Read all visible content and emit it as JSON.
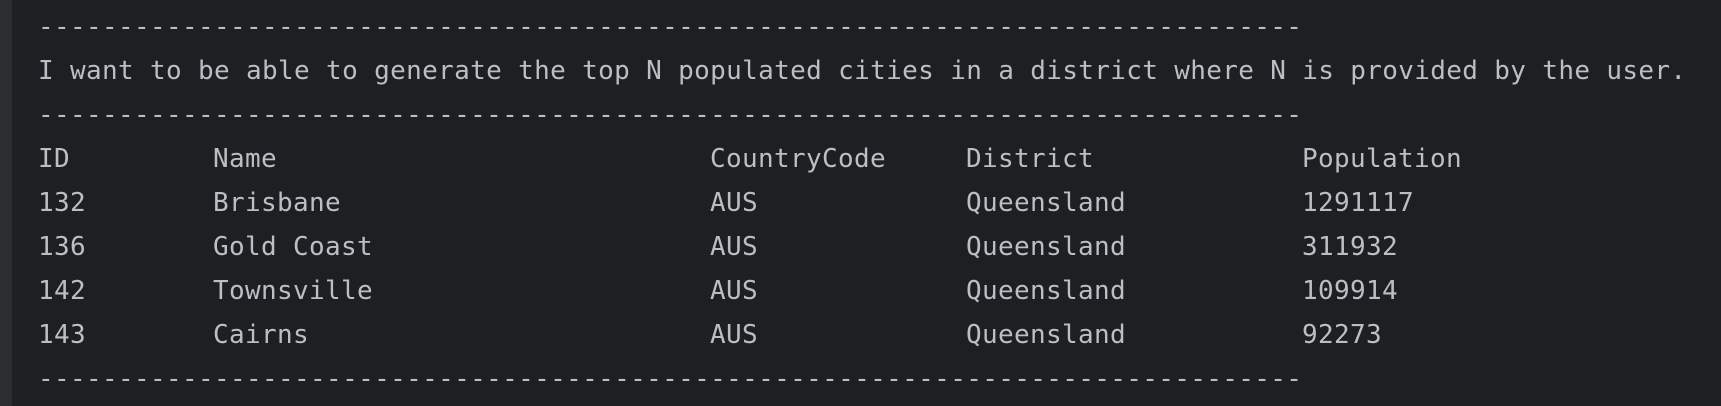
{
  "console": {
    "separator": "-------------------------------------------------------------------------------",
    "heading": "I want to be able to generate the top N populated cities in a district where N is provided by the user.",
    "table": {
      "columns": [
        "ID",
        "Name",
        "CountryCode",
        "District",
        "Population"
      ],
      "rows": [
        [
          "132",
          "Brisbane",
          "AUS",
          "Queensland",
          "1291117"
        ],
        [
          "136",
          "Gold Coast",
          "AUS",
          "Queensland",
          "311932"
        ],
        [
          "142",
          "Townsville",
          "AUS",
          "Queensland",
          "109914"
        ],
        [
          "143",
          "Cairns",
          "AUS",
          "Queensland",
          "92273"
        ]
      ]
    }
  }
}
